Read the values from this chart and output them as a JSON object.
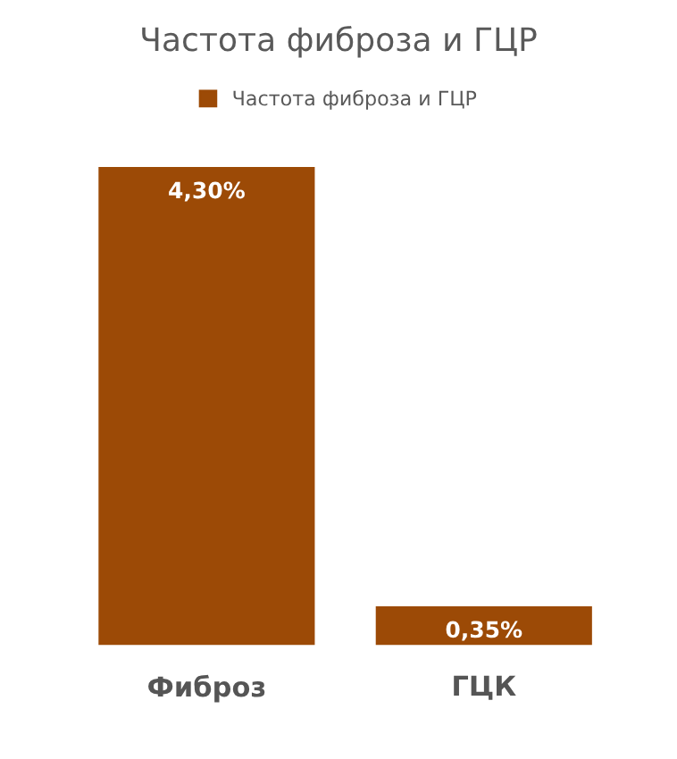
{
  "chart_data": {
    "type": "bar",
    "title": "Частота фиброза и ГЦР",
    "categories": [
      "Фиброз",
      "ГЦК"
    ],
    "series": [
      {
        "name": "Частота фиброза и ГЦР",
        "color": "#9c4a06",
        "values": [
          4.3,
          0.35
        ],
        "value_labels": [
          "4,30%",
          "0,35%"
        ]
      }
    ],
    "legend": "top",
    "grid": false
  }
}
